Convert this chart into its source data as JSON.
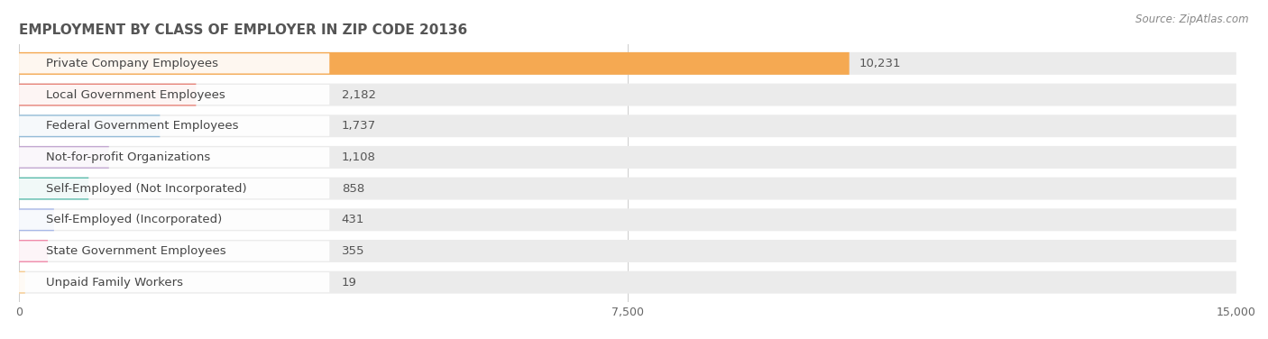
{
  "title": "EMPLOYMENT BY CLASS OF EMPLOYER IN ZIP CODE 20136",
  "source": "Source: ZipAtlas.com",
  "categories": [
    "Private Company Employees",
    "Local Government Employees",
    "Federal Government Employees",
    "Not-for-profit Organizations",
    "Self-Employed (Not Incorporated)",
    "Self-Employed (Incorporated)",
    "State Government Employees",
    "Unpaid Family Workers"
  ],
  "values": [
    10231,
    2182,
    1737,
    1108,
    858,
    431,
    355,
    19
  ],
  "bar_colors": [
    "#f5a952",
    "#e8857a",
    "#94bcd8",
    "#c3a8d1",
    "#5dbdae",
    "#a8b8e8",
    "#f08aaa",
    "#f7cb8e"
  ],
  "xlim": [
    0,
    15000
  ],
  "xticks": [
    0,
    7500,
    15000
  ],
  "title_fontsize": 11,
  "label_fontsize": 9.5,
  "value_fontsize": 9.5,
  "source_fontsize": 8.5,
  "background_color": "#ffffff",
  "row_bg_color": "#ebebeb",
  "label_bg_color": "#ffffff",
  "label_bg_alpha": 0.92
}
